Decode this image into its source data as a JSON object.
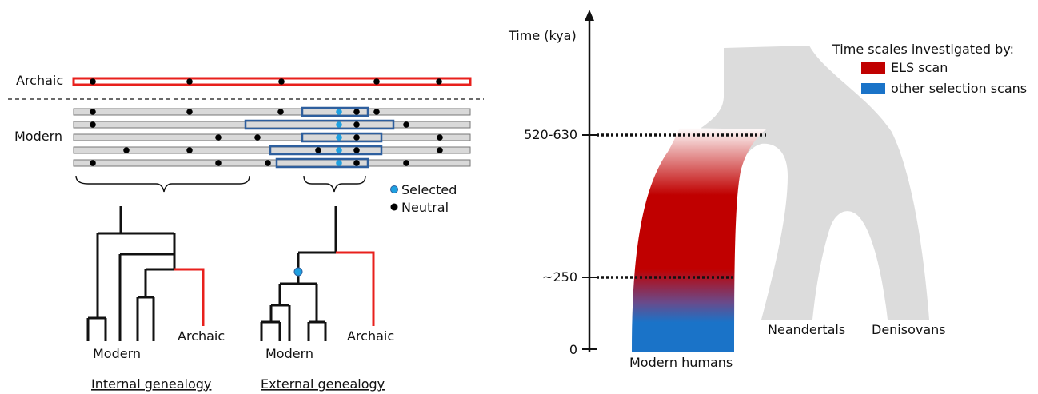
{
  "left_panel": {
    "archaic_label": "Archaic",
    "modern_label": "Modern",
    "legend": {
      "selected": "Selected",
      "neutral": "Neutral"
    },
    "internal_tree": {
      "modern_label": "Modern",
      "archaic_label": "Archaic",
      "caption": "Internal genealogy"
    },
    "external_tree": {
      "modern_label": "Modern",
      "archaic_label": "Archaic",
      "caption": "External genealogy"
    },
    "colors": {
      "archaic": "#e8201c",
      "haplotype_fill": "#d9d9d9",
      "window": "#2e5f9e",
      "selected_site": "#1ea0e0",
      "neutral_site": "#000000"
    }
  },
  "right_panel": {
    "axis_title": "Time (kya)",
    "ticks": [
      "520-630",
      "~250",
      "0"
    ],
    "legend_title": "Time scales investigated by:",
    "legend_items": [
      {
        "label": "ELS scan",
        "color": "#c00000"
      },
      {
        "label": "other selection scans",
        "color": "#1a73c8"
      }
    ],
    "populations": {
      "modern": "Modern humans",
      "neandertals": "Neandertals",
      "denisovans": "Denisovans"
    },
    "colors": {
      "tree_fill": "#dcdcdc"
    }
  }
}
